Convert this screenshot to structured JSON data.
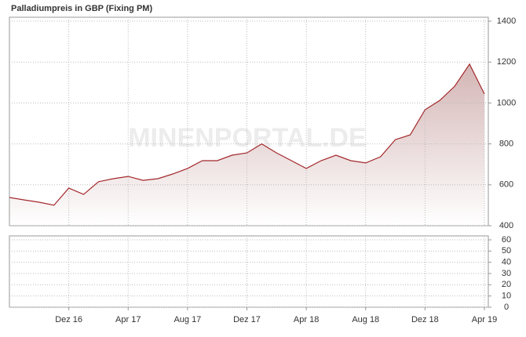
{
  "chart_data": [
    {
      "type": "area",
      "title": "Palladiumpreis in GBP (Fixing  PM)",
      "watermark": "MINENPORTAL.DE",
      "x": [
        "2016-08",
        "2016-09",
        "2016-10",
        "2016-11",
        "2016-12",
        "2017-01",
        "2017-02",
        "2017-03",
        "2017-04",
        "2017-05",
        "2017-06",
        "2017-07",
        "2017-08",
        "2017-09",
        "2017-10",
        "2017-11",
        "2017-12",
        "2018-01",
        "2018-02",
        "2018-03",
        "2018-04",
        "2018-05",
        "2018-06",
        "2018-07",
        "2018-08",
        "2018-09",
        "2018-10",
        "2018-11",
        "2018-12",
        "2019-01",
        "2019-02",
        "2019-03",
        "2019-04"
      ],
      "series": [
        {
          "name": "Palladium",
          "color": "#a3282b",
          "values": [
            538,
            526,
            515,
            500,
            584,
            553,
            615,
            630,
            641,
            622,
            630,
            653,
            680,
            718,
            718,
            745,
            756,
            800,
            756,
            718,
            680,
            718,
            745,
            718,
            707,
            737,
            821,
            844,
            967,
            1013,
            1082,
            1190,
            1044
          ]
        }
      ],
      "xlim": [
        "2016-08",
        "2019-04"
      ],
      "xticks": [
        {
          "value": "2016-12",
          "label": "Dez 16"
        },
        {
          "value": "2017-04",
          "label": "Apr 17"
        },
        {
          "value": "2017-08",
          "label": "Aug 17"
        },
        {
          "value": "2017-12",
          "label": "Dez 17"
        },
        {
          "value": "2018-04",
          "label": "Apr 18"
        },
        {
          "value": "2018-08",
          "label": "Aug 18"
        },
        {
          "value": "2018-12",
          "label": "Dez 18"
        },
        {
          "value": "2019-04",
          "label": "Apr 19"
        }
      ],
      "ylim": [
        400,
        1400
      ],
      "yticks": [
        400,
        600,
        800,
        1000,
        1200,
        1400
      ],
      "grid": true
    },
    {
      "type": "bar",
      "ylim": [
        0,
        60
      ],
      "yticks": [
        0,
        10,
        20,
        30,
        40,
        50,
        60
      ],
      "grid": true
    }
  ]
}
